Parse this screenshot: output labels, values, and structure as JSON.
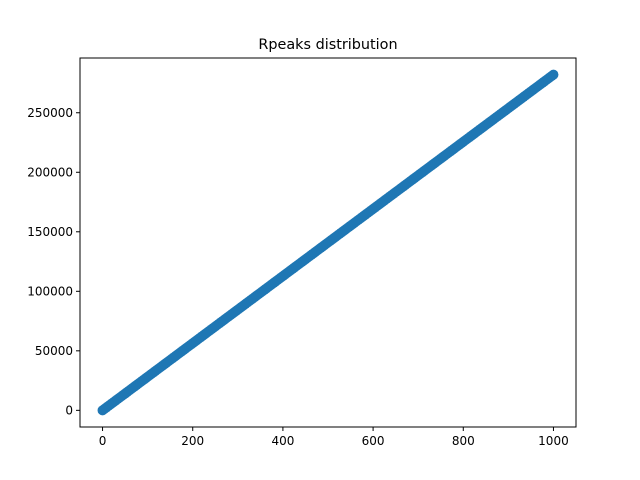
{
  "chart_data": {
    "type": "scatter",
    "title": "Rpeaks distribution",
    "xlabel": "",
    "ylabel": "",
    "xlim": [
      -50,
      1050
    ],
    "ylim": [
      -14000,
      296000
    ],
    "xticks": [
      0,
      200,
      400,
      600,
      800,
      1000
    ],
    "xtick_labels": [
      "0",
      "200",
      "400",
      "600",
      "800",
      "1000"
    ],
    "yticks": [
      0,
      50000,
      100000,
      150000,
      200000,
      250000
    ],
    "ytick_labels": [
      "0",
      "50000",
      "100000",
      "150000",
      "200000",
      "250000"
    ],
    "grid": false,
    "legend": "none",
    "series": [
      {
        "color": "#1f77b4",
        "marker": "circle",
        "x": [
          0,
          25,
          50,
          75,
          100,
          125,
          150,
          175,
          200,
          225,
          250,
          275,
          300,
          325,
          350,
          375,
          400,
          425,
          450,
          475,
          500,
          525,
          550,
          575,
          600,
          625,
          650,
          675,
          700,
          725,
          750,
          775,
          800,
          825,
          850,
          875,
          900,
          925,
          950,
          975,
          1000
        ],
        "y": [
          0,
          7050,
          14100,
          21150,
          28200,
          35250,
          42300,
          49350,
          56400,
          63450,
          70500,
          77550,
          84600,
          91650,
          98700,
          105750,
          112800,
          119850,
          126900,
          133950,
          141000,
          148050,
          155100,
          162150,
          169200,
          176250,
          183300,
          190350,
          197400,
          204450,
          211500,
          218550,
          225600,
          232650,
          239700,
          246750,
          253800,
          260850,
          267900,
          274950,
          282000
        ]
      }
    ]
  }
}
